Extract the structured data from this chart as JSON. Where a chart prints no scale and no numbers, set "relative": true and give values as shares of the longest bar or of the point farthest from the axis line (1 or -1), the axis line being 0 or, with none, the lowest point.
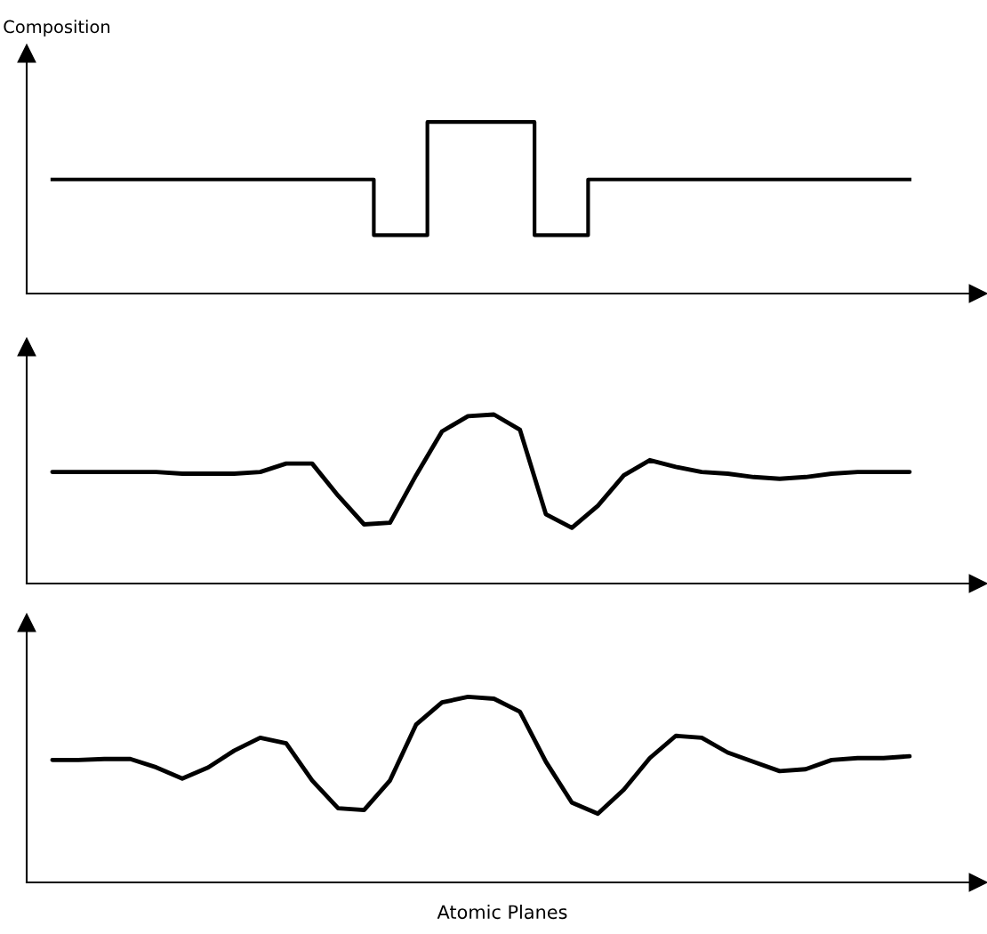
{
  "chart_data": [
    {
      "type": "step",
      "ylabel": "Composition",
      "relative": true,
      "tick_labels": false,
      "categories": [
        null,
        null,
        null,
        null,
        null,
        null,
        null,
        null,
        null,
        null,
        null,
        null,
        null,
        null,
        null,
        null,
        null
      ],
      "series": [
        {
          "color": "#000000",
          "values": [
            0.665,
            0.665,
            0.665,
            0.665,
            0.665,
            0.665,
            0.34,
            1,
            1,
            0.34,
            0.665,
            0.665,
            0.665,
            0.665,
            0.665,
            0.665,
            0.665
          ]
        }
      ]
    },
    {
      "type": "line",
      "relative": true,
      "tick_labels": false,
      "categories": [
        null,
        null,
        null,
        null,
        null,
        null,
        null,
        null,
        null,
        null,
        null,
        null,
        null,
        null,
        null,
        null,
        null,
        null,
        null,
        null,
        null,
        null,
        null,
        null,
        null,
        null,
        null,
        null,
        null,
        null,
        null,
        null,
        null,
        null
      ],
      "series": [
        {
          "color": "#000000",
          "values": [
            0.66,
            0.66,
            0.66,
            0.66,
            0.66,
            0.65,
            0.65,
            0.65,
            0.66,
            0.71,
            0.71,
            0.52,
            0.35,
            0.36,
            0.64,
            0.9,
            0.99,
            1,
            0.91,
            0.41,
            0.33,
            0.46,
            0.64,
            0.73,
            0.69,
            0.66,
            0.65,
            0.63,
            0.62,
            0.63,
            0.65,
            0.66,
            0.66,
            0.66
          ]
        }
      ]
    },
    {
      "type": "line",
      "xlabel": "Atomic Planes",
      "relative": true,
      "tick_labels": false,
      "categories": [
        null,
        null,
        null,
        null,
        null,
        null,
        null,
        null,
        null,
        null,
        null,
        null,
        null,
        null,
        null,
        null,
        null,
        null,
        null,
        null,
        null,
        null,
        null,
        null,
        null,
        null,
        null,
        null,
        null,
        null,
        null,
        null,
        null,
        null
      ],
      "series": [
        {
          "color": "#000000",
          "values": [
            0.66,
            0.66,
            0.665,
            0.665,
            0.62,
            0.56,
            0.62,
            0.71,
            0.78,
            0.75,
            0.55,
            0.4,
            0.39,
            0.55,
            0.85,
            0.97,
            1,
            0.99,
            0.92,
            0.65,
            0.43,
            0.37,
            0.5,
            0.67,
            0.79,
            0.78,
            0.7,
            0.65,
            0.6,
            0.61,
            0.66,
            0.67,
            0.67,
            0.68
          ]
        }
      ]
    }
  ]
}
